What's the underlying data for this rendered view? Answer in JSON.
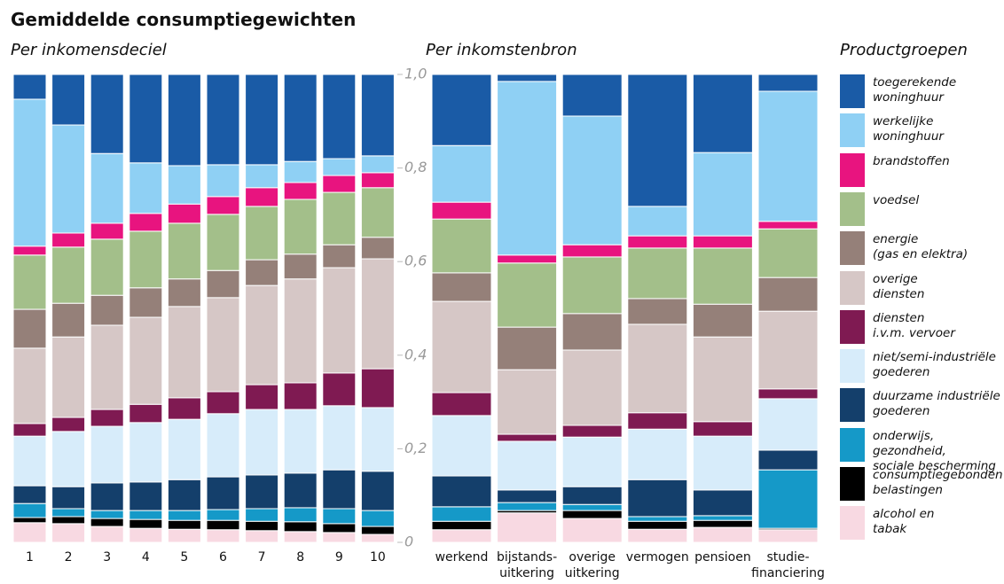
{
  "chart_data": {
    "type": "bar",
    "stacked": true,
    "title": "Gemiddelde consumptiegewichten",
    "legend_title": "Productgroepen",
    "ylim": [
      0,
      1
    ],
    "yticks": [
      0,
      {
        "value": 0.2,
        "label": "0,2"
      },
      {
        "value": 0.4,
        "label": "0,4"
      },
      {
        "value": 0.6,
        "label": "0,6"
      },
      {
        "value": 0.8,
        "label": "0,8"
      },
      {
        "value": 1,
        "label": "1,0"
      }
    ],
    "panels": [
      {
        "subtitle": "Per inkomensdeciel",
        "categories": [
          "1",
          "2",
          "3",
          "4",
          "5",
          "6",
          "7",
          "8",
          "9",
          "10"
        ]
      },
      {
        "subtitle": "Per inkomstenbron",
        "categories": [
          "werkend",
          "bijstands-\nuitkering",
          "overige\nuitkering",
          "vermogen",
          "pensioen",
          "studie-\nfinanciering"
        ]
      }
    ],
    "series": [
      {
        "name": "toegerekende\nwoninghuur",
        "color": "#1a5ba6",
        "values": [
          0.053,
          0.108,
          0.169,
          0.189,
          0.195,
          0.193,
          0.193,
          0.186,
          0.18,
          0.174,
          0.152,
          0.015,
          0.089,
          0.282,
          0.167,
          0.036
        ]
      },
      {
        "name": "werkelijke\nwoninghuur",
        "color": "#8fd0f4",
        "values": [
          0.314,
          0.231,
          0.149,
          0.108,
          0.082,
          0.068,
          0.049,
          0.045,
          0.036,
          0.036,
          0.121,
          0.371,
          0.275,
          0.063,
          0.178,
          0.278
        ]
      },
      {
        "name": "brandstoffen",
        "color": "#e8147f",
        "values": [
          0.019,
          0.03,
          0.034,
          0.038,
          0.041,
          0.038,
          0.04,
          0.036,
          0.036,
          0.032,
          0.036,
          0.017,
          0.026,
          0.026,
          0.026,
          0.016
        ]
      },
      {
        "name": "voedsel",
        "color": "#a3bf8a",
        "values": [
          0.116,
          0.12,
          0.12,
          0.121,
          0.119,
          0.12,
          0.114,
          0.117,
          0.112,
          0.106,
          0.115,
          0.137,
          0.121,
          0.108,
          0.12,
          0.104
        ]
      },
      {
        "name": "energie\n(gas en elektra)",
        "color": "#958079",
        "values": [
          0.083,
          0.072,
          0.064,
          0.063,
          0.059,
          0.058,
          0.055,
          0.053,
          0.049,
          0.046,
          0.061,
          0.091,
          0.078,
          0.055,
          0.07,
          0.072
        ]
      },
      {
        "name": "overige\ndiensten",
        "color": "#d6c7c6",
        "values": [
          0.161,
          0.172,
          0.18,
          0.186,
          0.195,
          0.201,
          0.212,
          0.222,
          0.225,
          0.235,
          0.195,
          0.138,
          0.161,
          0.189,
          0.181,
          0.166
        ]
      },
      {
        "name": "diensten\ni.v.m. vervoer",
        "color": "#7f1a52",
        "values": [
          0.027,
          0.03,
          0.036,
          0.039,
          0.046,
          0.047,
          0.053,
          0.057,
          0.07,
          0.083,
          0.049,
          0.015,
          0.025,
          0.035,
          0.031,
          0.021
        ]
      },
      {
        "name": "niet/semi-industriële\ngoederen",
        "color": "#d7ecfa",
        "values": [
          0.106,
          0.118,
          0.121,
          0.127,
          0.129,
          0.135,
          0.14,
          0.136,
          0.137,
          0.136,
          0.129,
          0.104,
          0.106,
          0.108,
          0.115,
          0.11
        ]
      },
      {
        "name": "duurzame industriële\ngoederen",
        "color": "#143f6b",
        "values": [
          0.038,
          0.047,
          0.059,
          0.061,
          0.066,
          0.07,
          0.072,
          0.074,
          0.083,
          0.084,
          0.066,
          0.027,
          0.038,
          0.079,
          0.055,
          0.042
        ]
      },
      {
        "name": "onderwijs, gezondheid,\nsociale bescherming",
        "color": "#1599c8",
        "values": [
          0.03,
          0.017,
          0.017,
          0.019,
          0.021,
          0.023,
          0.027,
          0.03,
          0.032,
          0.034,
          0.031,
          0.017,
          0.013,
          0.01,
          0.01,
          0.125
        ]
      },
      {
        "name": "consumptiegebonden\nbelastingen",
        "color": "#000000",
        "values": [
          0.011,
          0.015,
          0.017,
          0.019,
          0.019,
          0.02,
          0.02,
          0.021,
          0.019,
          0.017,
          0.018,
          0.005,
          0.017,
          0.017,
          0.015,
          0.003
        ]
      },
      {
        "name": "alcohol en\ntabak",
        "color": "#f8d9e2",
        "values": [
          0.042,
          0.04,
          0.034,
          0.03,
          0.028,
          0.027,
          0.025,
          0.023,
          0.021,
          0.017,
          0.027,
          0.063,
          0.051,
          0.028,
          0.032,
          0.027
        ]
      }
    ]
  }
}
